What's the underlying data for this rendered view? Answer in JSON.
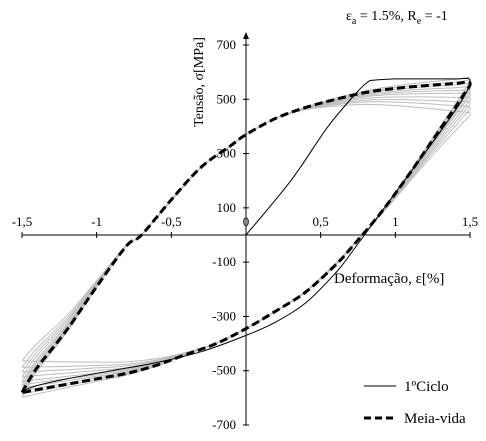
{
  "chart_data": {
    "type": "line",
    "title": "",
    "annotation": {
      "eps_symbol": "ε",
      "eps_sub": "a",
      "eps_value": " = 1.5%, ",
      "r_symbol": "R",
      "r_sub": "e",
      "r_value": " = -1"
    },
    "xlabel": "Deformação, ε[%]",
    "ylabel": "Tensão, σ[MPa]",
    "xlim": [
      -1.5,
      1.5
    ],
    "ylim": [
      -700,
      700
    ],
    "x_ticks": [
      -1.5,
      -1,
      -0.5,
      0,
      0.5,
      1,
      1.5
    ],
    "x_tick_labels": [
      "-1,5",
      "-1",
      "-0,5",
      "0",
      "0,5",
      "1",
      "1,5"
    ],
    "y_ticks": [
      -700,
      -500,
      -300,
      -100,
      100,
      300,
      500,
      700
    ],
    "y_tick_labels": [
      "-700",
      "-500",
      "-300",
      "-100",
      "100",
      "300",
      "500",
      "700"
    ],
    "grid": false,
    "legend_position": "bottom-right",
    "colors": {
      "first_cycle": "#000000",
      "half_life": "#000000",
      "intermediate_cycles": "#bdbdbd"
    },
    "series": [
      {
        "name": "1ºCiclo",
        "style": "solid-thin",
        "x": [
          0,
          0.3,
          0.55,
          0.75,
          0.82,
          0.85,
          1.0,
          1.2,
          1.4,
          1.5,
          1.45,
          1.3,
          1.1,
          0.9,
          0.7,
          0.6,
          0.4,
          0.2,
          0.0,
          -0.3,
          -0.6,
          -0.9,
          -1.2,
          -1.4,
          -1.5
        ],
        "y": [
          0,
          200,
          400,
          530,
          565,
          570,
          575,
          575,
          575,
          570,
          500,
          380,
          230,
          80,
          -70,
          -140,
          -250,
          -320,
          -370,
          -430,
          -470,
          -500,
          -530,
          -555,
          -575
        ]
      },
      {
        "name": "Meia-vida",
        "style": "dashed-thick",
        "x": [
          -1.5,
          -1.4,
          -1.2,
          -1.0,
          -0.8,
          -0.7,
          -0.5,
          -0.3,
          -0.1,
          0.0,
          0.2,
          0.4,
          0.6,
          0.8,
          1.0,
          1.2,
          1.4,
          1.5,
          1.45,
          1.3,
          1.1,
          0.9,
          0.7,
          0.6,
          0.4,
          0.2,
          0.0,
          -0.2,
          -0.4,
          -0.6,
          -0.8,
          -1.0,
          -1.2,
          -1.4,
          -1.5
        ],
        "y": [
          -580,
          -490,
          -350,
          -190,
          -40,
          0,
          130,
          250,
          330,
          370,
          430,
          470,
          500,
          525,
          540,
          550,
          558,
          560,
          510,
          390,
          230,
          80,
          -50,
          -110,
          -210,
          -280,
          -345,
          -400,
          -440,
          -480,
          -510,
          -530,
          -550,
          -570,
          -580
        ]
      }
    ]
  },
  "legend": {
    "first_cycle_label": "1ºCiclo",
    "half_life_label": "Meia-vida"
  }
}
